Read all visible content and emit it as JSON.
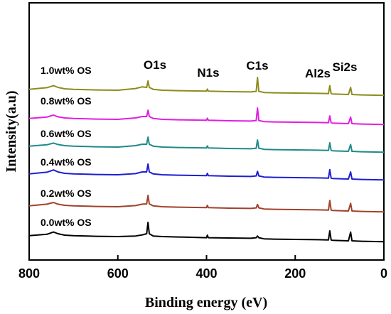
{
  "chart_data": {
    "type": "line",
    "xlabel": "Binding energy (eV)",
    "ylabel": "Intensity(a.u)",
    "xlim": [
      800,
      0
    ],
    "x_reversed": true,
    "x_ticks": [
      800,
      600,
      400,
      200,
      0
    ],
    "y_ticks_shown": false,
    "grid": false,
    "peak_labels": [
      {
        "text": "O1s",
        "x": 532
      },
      {
        "text": "N1s",
        "x": 400
      },
      {
        "text": "C1s",
        "x": 285
      },
      {
        "text": "Al2s",
        "x": 119
      },
      {
        "text": "Si2s",
        "x": 102
      }
    ],
    "series": [
      {
        "name": "0.0wt% OS",
        "color": "#000000",
        "x": [
          800,
          760,
          745,
          735,
          720,
          700,
          650,
          600,
          560,
          545,
          535,
          532,
          529,
          520,
          500,
          450,
          400,
          398,
          396,
          350,
          300,
          288,
          285,
          282,
          270,
          250,
          200,
          150,
          125,
          122,
          119,
          116,
          100,
          80,
          75,
          72,
          60,
          40,
          0
        ],
        "y": [
          0.3,
          0.8,
          1.6,
          1.0,
          0.5,
          0.3,
          0.1,
          0.0,
          0.2,
          0.6,
          1.0,
          5.0,
          1.0,
          0.2,
          0.0,
          -0.2,
          -0.4,
          0.5,
          -0.4,
          -0.5,
          -0.6,
          -0.4,
          0.2,
          -0.4,
          -0.8,
          -0.9,
          -1.0,
          -1.1,
          -1.2,
          2.0,
          -1.2,
          -1.3,
          -1.4,
          -1.5,
          1.6,
          -1.5,
          -1.6,
          -1.7,
          -1.8
        ]
      },
      {
        "name": "0.2wt% OS",
        "color": "#a0422a",
        "x": [
          800,
          760,
          745,
          735,
          720,
          700,
          650,
          600,
          560,
          545,
          535,
          532,
          529,
          520,
          500,
          450,
          400,
          398,
          396,
          350,
          300,
          288,
          285,
          282,
          270,
          250,
          200,
          150,
          125,
          122,
          119,
          116,
          100,
          80,
          75,
          72,
          60,
          40,
          0
        ],
        "y": [
          0.3,
          0.9,
          1.5,
          0.9,
          0.5,
          0.3,
          0.1,
          0.0,
          0.4,
          0.9,
          1.0,
          4.0,
          1.0,
          0.3,
          0.0,
          -0.2,
          -0.3,
          0.5,
          -0.3,
          -0.5,
          -0.6,
          -0.4,
          0.8,
          -0.4,
          -0.8,
          -0.9,
          -1.0,
          -1.1,
          -1.2,
          2.2,
          -1.2,
          -1.3,
          -1.4,
          -1.5,
          1.2,
          -1.5,
          -1.6,
          -1.7,
          -1.8
        ]
      },
      {
        "name": "0.4wt% OS",
        "color": "#1e1ed2",
        "x": [
          800,
          760,
          745,
          735,
          720,
          700,
          650,
          600,
          560,
          545,
          535,
          532,
          529,
          520,
          500,
          450,
          400,
          398,
          396,
          350,
          300,
          288,
          285,
          282,
          270,
          250,
          200,
          150,
          125,
          122,
          119,
          116,
          100,
          80,
          75,
          72,
          60,
          40,
          0
        ],
        "y": [
          0.3,
          0.9,
          1.7,
          1.0,
          0.5,
          0.3,
          0.1,
          0.0,
          0.4,
          1.0,
          1.0,
          3.8,
          1.0,
          0.3,
          0.0,
          -0.2,
          -0.3,
          0.5,
          -0.3,
          -0.5,
          -0.6,
          -0.4,
          1.2,
          -0.4,
          -0.8,
          -0.9,
          -1.0,
          -1.1,
          -1.2,
          1.8,
          -1.2,
          -1.3,
          -1.4,
          -1.5,
          1.0,
          -1.5,
          -1.6,
          -1.7,
          -1.8
        ]
      },
      {
        "name": "0.6wt% OS",
        "color": "#1f8a8a",
        "x": [
          800,
          760,
          745,
          735,
          720,
          700,
          650,
          600,
          560,
          545,
          535,
          532,
          529,
          520,
          500,
          450,
          400,
          398,
          396,
          350,
          300,
          288,
          285,
          282,
          270,
          250,
          200,
          150,
          125,
          122,
          119,
          116,
          100,
          80,
          75,
          72,
          60,
          40,
          0
        ],
        "y": [
          0.3,
          0.8,
          1.4,
          0.9,
          0.5,
          0.3,
          0.1,
          0.0,
          0.5,
          1.0,
          1.0,
          3.5,
          1.0,
          0.3,
          0.0,
          -0.2,
          -0.3,
          0.4,
          -0.3,
          -0.5,
          -0.6,
          -0.4,
          2.5,
          -0.4,
          -0.8,
          -0.9,
          -1.0,
          -1.1,
          -1.2,
          1.5,
          -1.2,
          -1.3,
          -1.4,
          -1.5,
          0.9,
          -1.5,
          -1.6,
          -1.7,
          -1.8
        ]
      },
      {
        "name": "0.8wt% OS",
        "color": "#e21ee2",
        "x": [
          800,
          760,
          745,
          735,
          720,
          700,
          650,
          600,
          560,
          545,
          535,
          532,
          529,
          520,
          500,
          450,
          400,
          398,
          396,
          350,
          300,
          288,
          285,
          282,
          270,
          250,
          200,
          150,
          125,
          122,
          119,
          116,
          100,
          80,
          75,
          72,
          60,
          40,
          0
        ],
        "y": [
          0.3,
          0.8,
          1.5,
          0.9,
          0.5,
          0.3,
          0.1,
          0.0,
          0.5,
          1.0,
          1.0,
          3.2,
          1.0,
          0.3,
          0.0,
          -0.2,
          -0.3,
          0.4,
          -0.3,
          -0.5,
          -0.6,
          -0.4,
          4.0,
          -0.4,
          -0.8,
          -0.9,
          -1.0,
          -1.1,
          -1.2,
          1.2,
          -1.2,
          -1.3,
          -1.4,
          -1.5,
          0.8,
          -1.5,
          -1.6,
          -1.7,
          -1.8
        ]
      },
      {
        "name": "1.0wt% OS",
        "color": "#8c8c1e",
        "x": [
          800,
          760,
          745,
          735,
          720,
          700,
          650,
          600,
          560,
          545,
          535,
          532,
          529,
          520,
          500,
          450,
          400,
          398,
          396,
          350,
          300,
          288,
          285,
          282,
          270,
          250,
          200,
          150,
          125,
          122,
          119,
          116,
          100,
          80,
          75,
          72,
          60,
          40,
          0
        ],
        "y": [
          0.3,
          0.9,
          1.6,
          1.0,
          0.5,
          0.3,
          0.1,
          0.0,
          0.6,
          1.2,
          1.0,
          3.3,
          1.0,
          0.3,
          0.0,
          -0.2,
          -0.3,
          0.4,
          -0.3,
          -0.5,
          -0.6,
          -0.4,
          4.5,
          -0.4,
          -0.8,
          -0.9,
          -1.0,
          -1.1,
          -1.2,
          1.6,
          -1.2,
          -1.3,
          -1.4,
          -1.5,
          1.0,
          -1.5,
          -1.6,
          -1.7,
          -1.8
        ]
      }
    ]
  }
}
